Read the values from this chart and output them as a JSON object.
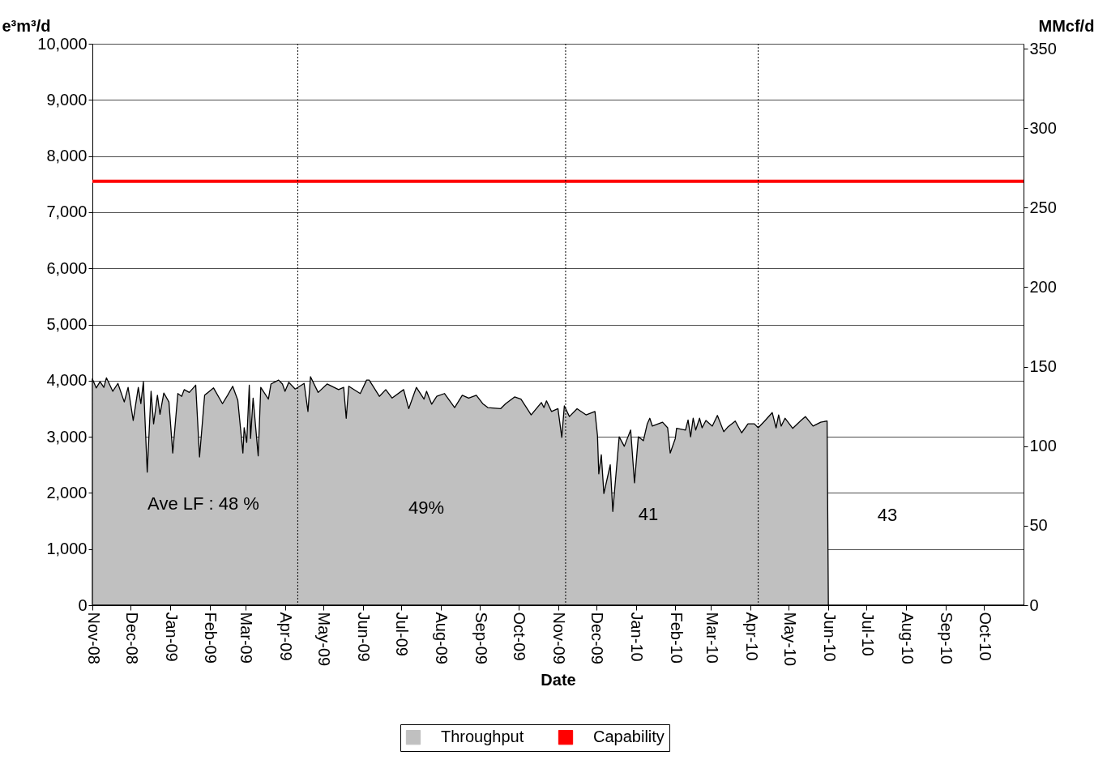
{
  "chart_data": {
    "type": "area",
    "xlabel": "Date",
    "ylabel": "e³m³/d",
    "y2label": "MMcf/d",
    "xlim": [
      "2008-11-01",
      "2010-11-01"
    ],
    "xticks": [
      {
        "value": "2008-11-01",
        "label": "Nov-08"
      },
      {
        "value": "2008-12-01",
        "label": "Dec-08"
      },
      {
        "value": "2009-01-01",
        "label": "Jan-09"
      },
      {
        "value": "2009-02-01",
        "label": "Feb-09"
      },
      {
        "value": "2009-03-01",
        "label": "Mar-09"
      },
      {
        "value": "2009-04-01",
        "label": "Apr-09"
      },
      {
        "value": "2009-05-01",
        "label": "May-09"
      },
      {
        "value": "2009-06-01",
        "label": "Jun-09"
      },
      {
        "value": "2009-07-01",
        "label": "Jul-09"
      },
      {
        "value": "2009-08-01",
        "label": "Aug-09"
      },
      {
        "value": "2009-09-01",
        "label": "Sep-09"
      },
      {
        "value": "2009-10-01",
        "label": "Oct-09"
      },
      {
        "value": "2009-11-01",
        "label": "Nov-09"
      },
      {
        "value": "2009-12-01",
        "label": "Dec-09"
      },
      {
        "value": "2010-01-01",
        "label": "Jan-10"
      },
      {
        "value": "2010-02-01",
        "label": "Feb-10"
      },
      {
        "value": "2010-03-01",
        "label": "Mar-10"
      },
      {
        "value": "2010-04-01",
        "label": "Apr-10"
      },
      {
        "value": "2010-05-01",
        "label": "May-10"
      },
      {
        "value": "2010-06-01",
        "label": "Jun-10"
      },
      {
        "value": "2010-07-01",
        "label": "Jul-10"
      },
      {
        "value": "2010-08-01",
        "label": "Aug-10"
      },
      {
        "value": "2010-09-01",
        "label": "Sep-10"
      },
      {
        "value": "2010-10-01",
        "label": "Oct-10"
      }
    ],
    "ylim": [
      0,
      10000
    ],
    "yticks": [
      0,
      {
        "value": 1000,
        "label": "1,000"
      },
      {
        "value": 2000,
        "label": "2,000"
      },
      {
        "value": 3000,
        "label": "3,000"
      },
      {
        "value": 4000,
        "label": "4,000"
      },
      {
        "value": 5000,
        "label": "5,000"
      },
      {
        "value": 6000,
        "label": "6,000"
      },
      {
        "value": 7000,
        "label": "7,000"
      },
      {
        "value": 8000,
        "label": "8,000"
      },
      {
        "value": 9000,
        "label": "9,000"
      },
      {
        "value": 10000,
        "label": "10,000"
      }
    ],
    "y2lim": [
      0,
      353.1
    ],
    "y2ticks": [
      0,
      50,
      100,
      150,
      200,
      250,
      300,
      350
    ],
    "grid": "y",
    "legend": "bottom",
    "series": [
      {
        "name": "Throughput",
        "color": "#c0c0c0",
        "x": [
          "2008-11-01",
          "2008-11-04",
          "2008-11-07",
          "2008-11-10",
          "2008-11-12",
          "2008-11-17",
          "2008-11-21",
          "2008-11-26",
          "2008-11-29",
          "2008-12-03",
          "2008-12-07",
          "2008-12-09",
          "2008-12-11",
          "2008-12-14",
          "2008-12-17",
          "2008-12-19",
          "2008-12-22",
          "2008-12-24",
          "2008-12-27",
          "2008-12-31",
          "2009-01-03",
          "2009-01-07",
          "2009-01-10",
          "2009-01-12",
          "2009-01-16",
          "2009-01-21",
          "2009-01-24",
          "2009-01-28",
          "2009-02-04",
          "2009-02-11",
          "2009-02-15",
          "2009-02-19",
          "2009-02-23",
          "2009-02-27",
          "2009-02-28",
          "2009-03-02",
          "2009-03-04",
          "2009-03-05",
          "2009-03-07",
          "2009-03-11",
          "2009-03-13",
          "2009-03-19",
          "2009-03-21",
          "2009-03-27",
          "2009-03-30",
          "2009-04-01",
          "2009-04-04",
          "2009-04-09",
          "2009-04-16",
          "2009-04-19",
          "2009-04-21",
          "2009-04-27",
          "2009-05-04",
          "2009-05-13",
          "2009-05-17",
          "2009-05-19",
          "2009-05-21",
          "2009-05-30",
          "2009-06-04",
          "2009-06-06",
          "2009-06-14",
          "2009-06-19",
          "2009-06-24",
          "2009-07-03",
          "2009-07-07",
          "2009-07-13",
          "2009-07-19",
          "2009-07-21",
          "2009-07-25",
          "2009-07-29",
          "2009-08-04",
          "2009-08-12",
          "2009-08-18",
          "2009-08-23",
          "2009-08-29",
          "2009-09-03",
          "2009-09-07",
          "2009-09-17",
          "2009-09-21",
          "2009-09-28",
          "2009-10-03",
          "2009-10-11",
          "2009-10-19",
          "2009-10-21",
          "2009-10-23",
          "2009-10-27",
          "2009-11-01",
          "2009-11-04",
          "2009-11-06",
          "2009-11-10",
          "2009-11-16",
          "2009-11-23",
          "2009-11-30",
          "2009-12-02",
          "2009-12-03",
          "2009-12-05",
          "2009-12-07",
          "2009-12-12",
          "2009-12-14",
          "2009-12-19",
          "2009-12-23",
          "2009-12-28",
          "2009-12-31",
          "2010-01-03",
          "2010-01-07",
          "2010-01-10",
          "2010-01-12",
          "2010-01-14",
          "2010-01-22",
          "2010-01-26",
          "2010-01-28",
          "2010-02-01",
          "2010-02-02",
          "2010-02-09",
          "2010-02-11",
          "2010-02-13",
          "2010-02-15",
          "2010-02-17",
          "2010-02-20",
          "2010-02-22",
          "2010-02-25",
          "2010-03-02",
          "2010-03-06",
          "2010-03-11",
          "2010-03-14",
          "2010-03-20",
          "2010-03-25",
          "2010-03-30",
          "2010-04-04",
          "2010-04-07",
          "2010-04-12",
          "2010-04-18",
          "2010-04-21",
          "2010-04-23",
          "2010-04-25",
          "2010-04-28",
          "2010-05-04",
          "2010-05-11",
          "2010-05-14",
          "2010-05-20",
          "2010-05-26",
          "2010-05-31",
          "2010-06-01",
          "2010-11-01"
        ],
        "values": [
          4030,
          3870,
          3980,
          3880,
          4050,
          3810,
          3950,
          3620,
          3880,
          3290,
          3880,
          3590,
          3980,
          2370,
          3810,
          3230,
          3740,
          3400,
          3780,
          3620,
          2710,
          3770,
          3720,
          3840,
          3790,
          3920,
          2640,
          3740,
          3870,
          3590,
          3740,
          3900,
          3650,
          2710,
          3160,
          2900,
          3920,
          2970,
          3690,
          2660,
          3880,
          3670,
          3940,
          4010,
          3940,
          3810,
          3970,
          3850,
          3950,
          3450,
          4070,
          3790,
          3940,
          3840,
          3880,
          3330,
          3900,
          3770,
          4010,
          4010,
          3720,
          3840,
          3690,
          3840,
          3500,
          3880,
          3670,
          3810,
          3580,
          3720,
          3770,
          3520,
          3740,
          3690,
          3740,
          3590,
          3520,
          3500,
          3590,
          3710,
          3670,
          3390,
          3610,
          3520,
          3640,
          3450,
          3500,
          2990,
          3550,
          3360,
          3500,
          3390,
          3450,
          3020,
          2340,
          2680,
          1990,
          2500,
          1670,
          3000,
          2830,
          3120,
          2180,
          3000,
          2930,
          3230,
          3330,
          3190,
          3260,
          3160,
          2710,
          2970,
          3150,
          3120,
          3300,
          3000,
          3330,
          3120,
          3330,
          3160,
          3290,
          3190,
          3380,
          3090,
          3170,
          3280,
          3070,
          3230,
          3230,
          3160,
          3280,
          3430,
          3160,
          3390,
          3190,
          3330,
          3150,
          3300,
          3360,
          3190,
          3260,
          3280,
          0,
          0
        ]
      },
      {
        "name": "Capability",
        "type": "line",
        "color": "#ff0000",
        "x": [
          "2008-11-01",
          "2010-11-01"
        ],
        "values": [
          7550,
          7550
        ]
      }
    ],
    "ref_lines": [
      {
        "axis": "x",
        "value": "2009-04-11",
        "line_style": "dotted"
      },
      {
        "axis": "x",
        "value": "2009-11-07",
        "line_style": "dotted"
      },
      {
        "axis": "x",
        "value": "2010-04-07",
        "line_style": "dotted"
      }
    ],
    "annotations": [
      "Ave LF : 48 %",
      "49%",
      "41",
      "43"
    ]
  }
}
